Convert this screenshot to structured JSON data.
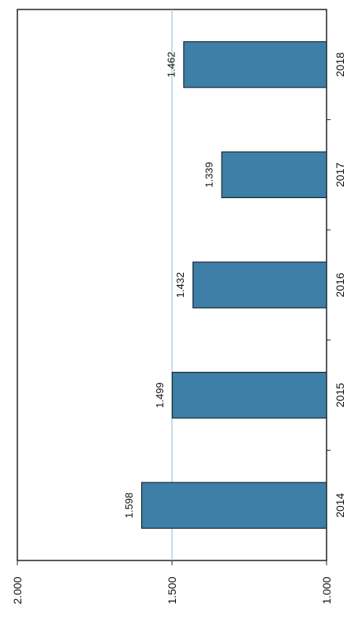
{
  "chart_data": {
    "type": "bar",
    "orientation": "horizontal-rotated",
    "categories": [
      "2014",
      "2015",
      "2016",
      "2017",
      "2018"
    ],
    "values": [
      1.598,
      1.499,
      1.432,
      1.339,
      1.462
    ],
    "value_labels": [
      "1.598",
      "1.499",
      "1.432",
      "1.339",
      "1.462"
    ],
    "ylim": [
      1.0,
      2.0
    ],
    "ticks": [
      1.0,
      1.5,
      2.0
    ],
    "tick_labels": [
      "1.000",
      "1.500",
      "2.000"
    ],
    "gridlines": [
      1.5
    ],
    "title": "",
    "xlabel": "",
    "ylabel": "",
    "colors": {
      "bar": "#3d7fa6",
      "bar_edge": "#1b2a33",
      "grid": "#9cc9d8",
      "axis": "#222222"
    }
  }
}
